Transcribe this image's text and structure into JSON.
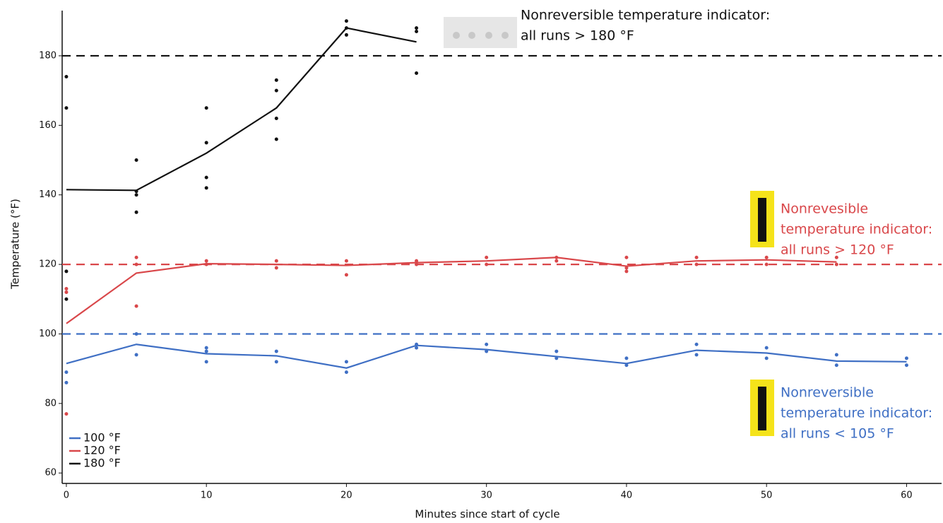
{
  "chart_data": {
    "type": "line",
    "xlabel": "Minutes since start of cycle",
    "ylabel": "Temperature (°F)",
    "xlim": [
      -0.3,
      62.5
    ],
    "ylim": [
      57,
      193
    ],
    "xticks": [
      0,
      10,
      20,
      30,
      40,
      50,
      60
    ],
    "yticks": [
      60,
      80,
      100,
      120,
      140,
      160,
      180
    ],
    "grid": false,
    "legend": "lower left",
    "series": [
      {
        "name": "100 °F",
        "color": "#3f6fc4",
        "threshold": 100,
        "x": [
          0,
          5,
          10,
          15,
          20,
          25,
          30,
          35,
          40,
          45,
          50,
          55,
          60
        ],
        "values": [
          91.5,
          97,
          94.3,
          93.7,
          90.2,
          96.7,
          95.5,
          93.5,
          91.5,
          95.3,
          94.5,
          92.2,
          92
        ],
        "points_x": [
          0,
          0,
          5,
          5,
          10,
          10,
          10,
          15,
          15,
          20,
          20,
          25,
          25,
          30,
          30,
          35,
          35,
          40,
          40,
          45,
          45,
          50,
          50,
          55,
          55,
          60,
          60
        ],
        "points_y": [
          89,
          86,
          100,
          94,
          96,
          95,
          92,
          95,
          92,
          92,
          89,
          97,
          96,
          97,
          95,
          95,
          93,
          93,
          91,
          97,
          94,
          96,
          93,
          94,
          91,
          93,
          91
        ]
      },
      {
        "name": "120 °F",
        "color": "#d9474a",
        "threshold": 120,
        "x": [
          0,
          5,
          10,
          15,
          20,
          25,
          30,
          35,
          40,
          45,
          50,
          55
        ],
        "values": [
          103,
          117.5,
          120.2,
          120,
          119.7,
          120.5,
          121,
          122,
          119.5,
          121,
          121.3,
          120.7
        ],
        "points_x": [
          0,
          0,
          0,
          5,
          5,
          5,
          10,
          10,
          15,
          15,
          20,
          20,
          25,
          25,
          30,
          30,
          35,
          35,
          40,
          40,
          40,
          45,
          45,
          50,
          50,
          55,
          55
        ],
        "points_y": [
          113,
          112,
          77,
          122,
          120,
          108,
          121,
          120,
          121,
          119,
          121,
          117,
          121,
          120,
          122,
          120,
          122,
          121,
          122,
          119,
          118,
          122,
          120,
          122,
          120,
          122,
          120
        ]
      },
      {
        "name": "180 °F",
        "color": "#111111",
        "threshold": 180,
        "x": [
          0,
          5,
          10,
          15,
          20,
          25
        ],
        "values": [
          141.5,
          141.3,
          152,
          165,
          188,
          184
        ],
        "points_x": [
          0,
          0,
          0,
          0,
          5,
          5,
          5,
          5,
          10,
          10,
          10,
          10,
          15,
          15,
          15,
          15,
          20,
          20,
          20,
          25,
          25,
          25
        ],
        "points_y": [
          174,
          165,
          118,
          110,
          150,
          141,
          140,
          135,
          165,
          155,
          145,
          142,
          173,
          170,
          162,
          156,
          190,
          188,
          186,
          188,
          187,
          175
        ]
      }
    ],
    "annotations": [
      {
        "color": "#111111",
        "lines": [
          "Nonreversible temperature indicator:",
          "all runs > 180 °F"
        ]
      },
      {
        "color": "#d9474a",
        "lines": [
          "Nonrevesible",
          "temperature indicator:",
          "all runs > 120 °F"
        ]
      },
      {
        "color": "#3f6fc4",
        "lines": [
          "Nonreversible",
          "temperature indicator:",
          "all runs < 105 °F"
        ]
      }
    ]
  }
}
